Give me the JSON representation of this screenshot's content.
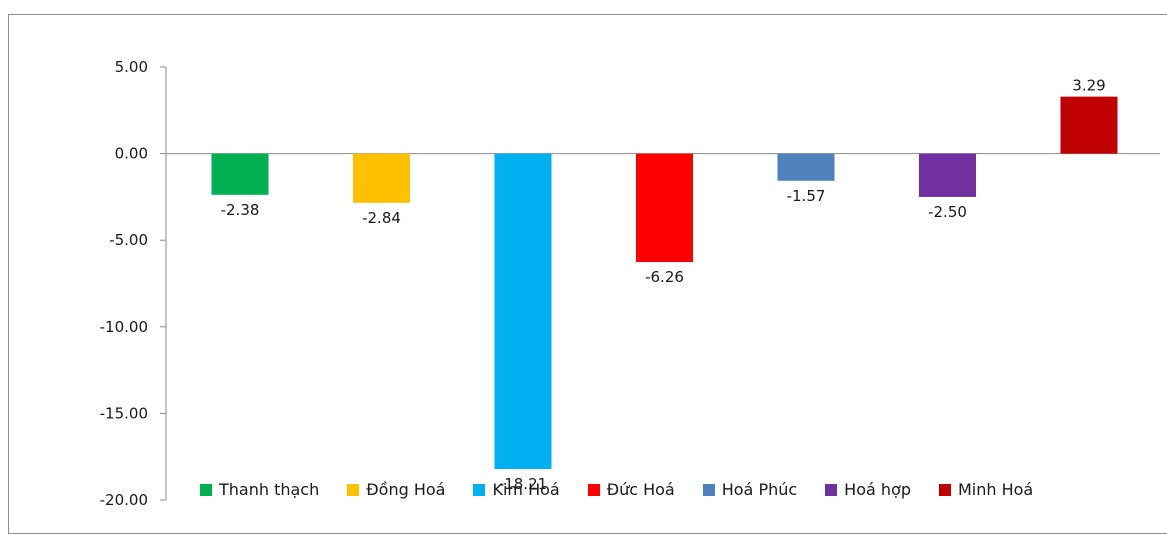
{
  "chart_data": {
    "type": "bar",
    "title": "",
    "xlabel": "",
    "ylabel": "",
    "ylim": [
      -20,
      5
    ],
    "y_ticks": [
      "5.00",
      "0.00",
      "-5.00",
      "-10.00",
      "-15.00",
      "-20.00"
    ],
    "grid": false,
    "legend_position": "bottom",
    "series": [
      {
        "name": "Thanh thạch",
        "value": -2.38,
        "label": "-2.38",
        "color": "#00b050"
      },
      {
        "name": "Đồng Hoá",
        "value": -2.84,
        "label": "-2.84",
        "color": "#ffc000"
      },
      {
        "name": "Kim Hoá",
        "value": -18.21,
        "label": "-18.21",
        "color": "#00b0f0"
      },
      {
        "name": "Đức Hoá",
        "value": -6.26,
        "label": "-6.26",
        "color": "#ff0000"
      },
      {
        "name": "Hoá Phúc",
        "value": -1.57,
        "label": "-1.57",
        "color": "#4f81bd"
      },
      {
        "name": "Hoá hợp",
        "value": -2.5,
        "label": "-2.50",
        "color": "#7030a0"
      },
      {
        "name": "Minh Hoá",
        "value": 3.29,
        "label": "3.29",
        "color": "#c00000"
      }
    ]
  }
}
